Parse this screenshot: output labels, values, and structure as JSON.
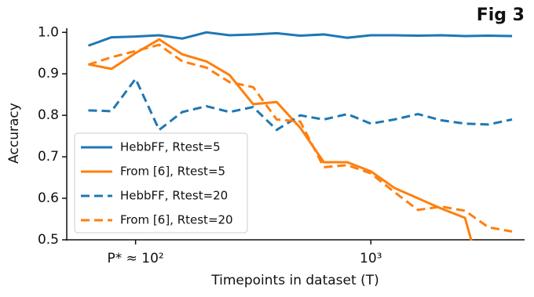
{
  "chart_data": {
    "type": "line",
    "figure_label": "Fig 3",
    "x_label": "Timepoints in dataset (T)",
    "y_label": "Accuracy",
    "x": [
      63,
      79,
      100,
      126,
      158,
      200,
      251,
      316,
      398,
      501,
      631,
      794,
      1000,
      1259,
      1585,
      1995,
      2512,
      3162,
      3981
    ],
    "xscale": "log",
    "xlim": [
      51,
      4500
    ],
    "xticks": [
      {
        "value": 100,
        "label": "P* ≈ 10²"
      },
      {
        "value": 1000,
        "label": "10³"
      }
    ],
    "ylim": [
      0.5,
      1.01
    ],
    "yticks": [
      0.5,
      0.6,
      0.7,
      0.8,
      0.9,
      {
        "value": 1,
        "label": "1.0"
      }
    ],
    "legend": "lower left",
    "series": [
      {
        "name": "HebbFF, Rtest=5",
        "color": "#1f77b4",
        "dash": "solid",
        "values": [
          0.968,
          0.988,
          0.99,
          0.993,
          0.985,
          1.0,
          0.993,
          0.995,
          0.998,
          0.992,
          0.995,
          0.987,
          0.993,
          0.993,
          0.992,
          0.993,
          0.991,
          0.992,
          0.991
        ]
      },
      {
        "name": "From [6], Rtest=5",
        "color": "#ff7f0e",
        "dash": "solid",
        "values": [
          0.923,
          0.912,
          0.95,
          0.983,
          0.947,
          0.93,
          0.897,
          0.827,
          0.832,
          0.77,
          0.687,
          0.687,
          0.665,
          0.625,
          0.6,
          0.575,
          0.553,
          0.35,
          null
        ]
      },
      {
        "name": "HebbFF, Rtest=20",
        "color": "#1f77b4",
        "dash": "dashed",
        "values": [
          0.812,
          0.81,
          0.888,
          0.765,
          0.808,
          0.822,
          0.808,
          0.82,
          0.765,
          0.8,
          0.79,
          0.803,
          0.78,
          0.79,
          0.803,
          0.788,
          0.78,
          0.778,
          0.79
        ]
      },
      {
        "name": "From [6], Rtest=20",
        "color": "#ff7f0e",
        "dash": "dashed",
        "values": [
          0.922,
          0.94,
          0.955,
          0.97,
          0.93,
          0.915,
          0.88,
          0.868,
          0.79,
          0.785,
          0.675,
          0.68,
          0.66,
          0.615,
          0.572,
          0.58,
          0.57,
          0.53,
          0.52
        ]
      }
    ]
  }
}
